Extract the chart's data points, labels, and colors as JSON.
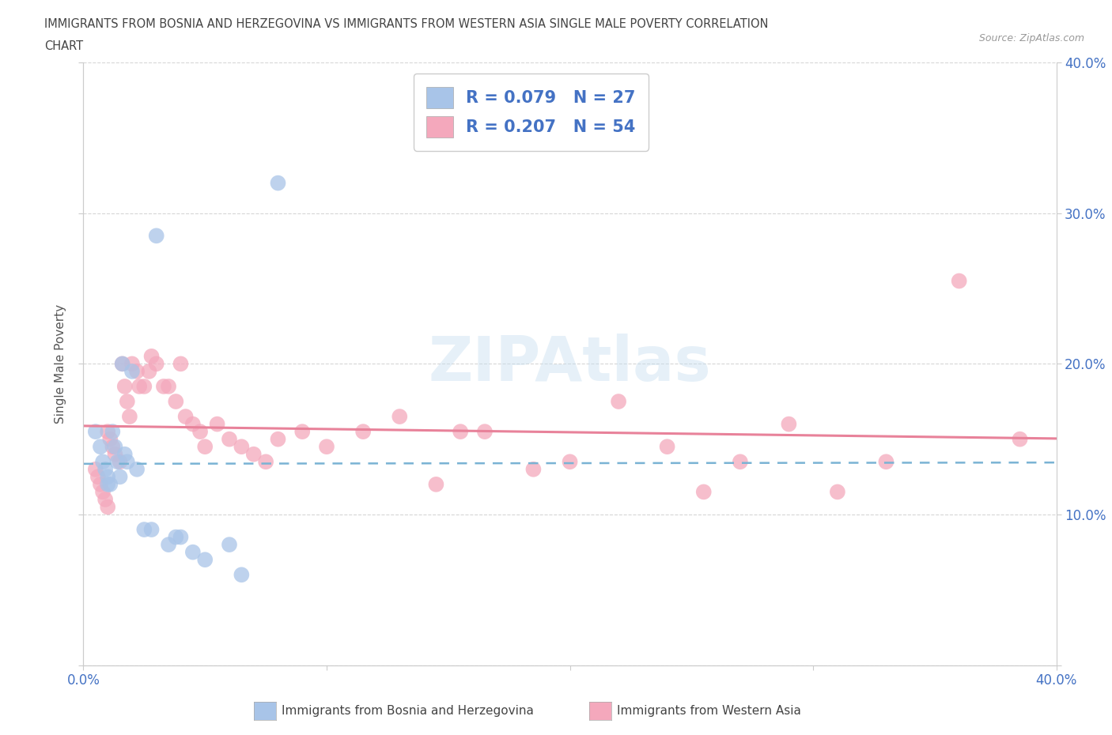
{
  "title_line1": "IMMIGRANTS FROM BOSNIA AND HERZEGOVINA VS IMMIGRANTS FROM WESTERN ASIA SINGLE MALE POVERTY CORRELATION",
  "title_line2": "CHART",
  "source": "Source: ZipAtlas.com",
  "ylabel": "Single Male Poverty",
  "xlim": [
    0.0,
    0.4
  ],
  "ylim": [
    0.0,
    0.4
  ],
  "bosnia_R": 0.079,
  "bosnia_N": 27,
  "western_asia_R": 0.207,
  "western_asia_N": 54,
  "bosnia_color": "#a8c4e8",
  "western_asia_color": "#f4a8bc",
  "background_color": "#ffffff",
  "bosnia_x": [
    0.005,
    0.007,
    0.008,
    0.009,
    0.01,
    0.01,
    0.011,
    0.012,
    0.013,
    0.014,
    0.015,
    0.016,
    0.017,
    0.018,
    0.02,
    0.022,
    0.025,
    0.028,
    0.03,
    0.035,
    0.038,
    0.04,
    0.045,
    0.05,
    0.06,
    0.065,
    0.08
  ],
  "bosnia_y": [
    0.155,
    0.145,
    0.135,
    0.13,
    0.125,
    0.12,
    0.12,
    0.155,
    0.145,
    0.135,
    0.125,
    0.2,
    0.14,
    0.135,
    0.195,
    0.13,
    0.09,
    0.09,
    0.285,
    0.08,
    0.085,
    0.085,
    0.075,
    0.07,
    0.08,
    0.06,
    0.32
  ],
  "western_asia_x": [
    0.005,
    0.006,
    0.007,
    0.008,
    0.009,
    0.01,
    0.01,
    0.011,
    0.012,
    0.013,
    0.015,
    0.016,
    0.017,
    0.018,
    0.019,
    0.02,
    0.022,
    0.023,
    0.025,
    0.027,
    0.028,
    0.03,
    0.033,
    0.035,
    0.038,
    0.04,
    0.042,
    0.045,
    0.048,
    0.05,
    0.055,
    0.06,
    0.065,
    0.07,
    0.075,
    0.08,
    0.09,
    0.1,
    0.115,
    0.13,
    0.145,
    0.155,
    0.165,
    0.185,
    0.2,
    0.22,
    0.24,
    0.255,
    0.27,
    0.29,
    0.31,
    0.33,
    0.36,
    0.385
  ],
  "western_asia_y": [
    0.13,
    0.125,
    0.12,
    0.115,
    0.11,
    0.105,
    0.155,
    0.15,
    0.145,
    0.14,
    0.135,
    0.2,
    0.185,
    0.175,
    0.165,
    0.2,
    0.195,
    0.185,
    0.185,
    0.195,
    0.205,
    0.2,
    0.185,
    0.185,
    0.175,
    0.2,
    0.165,
    0.16,
    0.155,
    0.145,
    0.16,
    0.15,
    0.145,
    0.14,
    0.135,
    0.15,
    0.155,
    0.145,
    0.155,
    0.165,
    0.12,
    0.155,
    0.155,
    0.13,
    0.135,
    0.175,
    0.145,
    0.115,
    0.135,
    0.16,
    0.115,
    0.135,
    0.255,
    0.15
  ]
}
